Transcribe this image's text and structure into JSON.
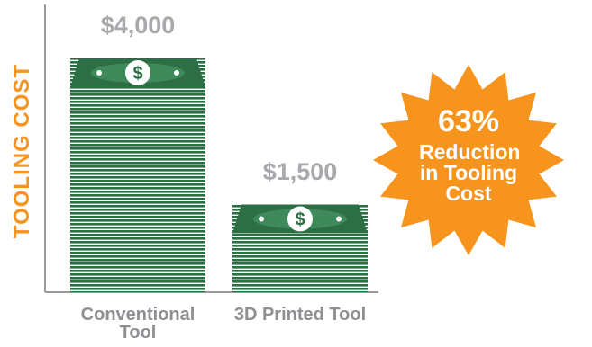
{
  "chart_data": {
    "type": "bar",
    "y_label": "TOOLING COST",
    "categories": [
      "Conventional Tool",
      "3D Printed Tool"
    ],
    "values": [
      4000,
      1500
    ],
    "value_labels": [
      "$4,000",
      "$1,500"
    ],
    "color": "#2d6e45",
    "annotation": {
      "headline": "63%",
      "text": "Reduction in Tooling Cost"
    }
  }
}
